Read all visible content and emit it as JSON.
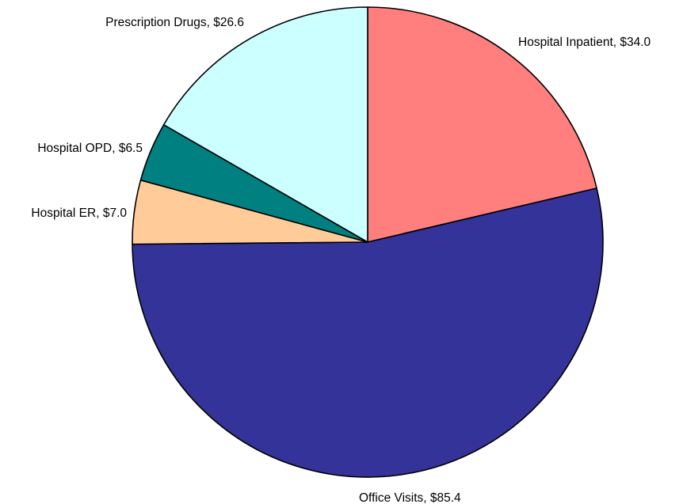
{
  "chart_data": {
    "type": "pie",
    "start_angle_deg": 0,
    "direction": "clockwise",
    "slices": [
      {
        "label": "Hospital Inpatient, $34.0",
        "name": "Hospital Inpatient",
        "value": 34.0,
        "color": "#FF7F7F"
      },
      {
        "label": "Office Visits, $85.4",
        "name": "Office Visits",
        "value": 85.4,
        "color": "#333399"
      },
      {
        "label": "Hospital ER, $7.0",
        "name": "Hospital ER",
        "value": 7.0,
        "color": "#FFCC99"
      },
      {
        "label": "Hospital OPD, $6.5",
        "name": "Hospital OPD",
        "value": 6.5,
        "color": "#008080"
      },
      {
        "label": "Prescription Drugs, $26.6",
        "name": "Prescription Drugs",
        "value": 26.6,
        "color": "#CCFFFF"
      }
    ],
    "value_format": "currency",
    "legend": "none",
    "title": ""
  }
}
